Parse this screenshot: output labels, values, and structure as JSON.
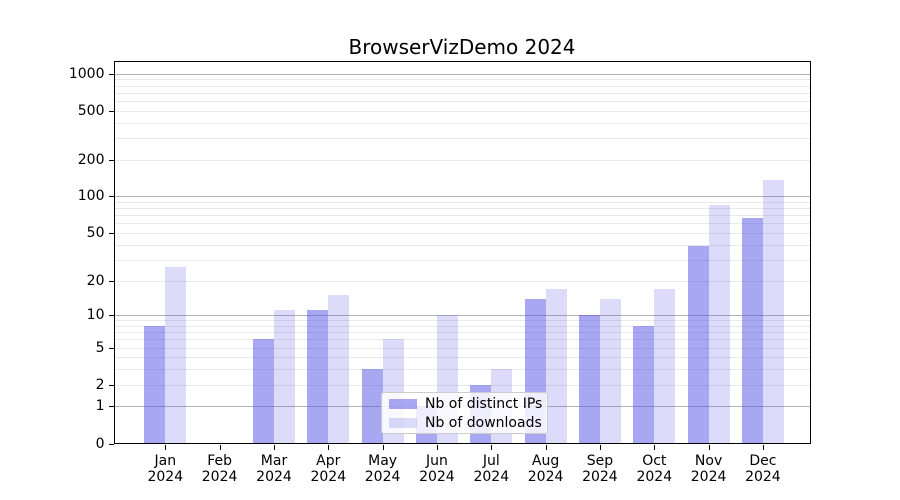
{
  "chart_data": {
    "type": "bar",
    "title": "BrowserVizDemo 2024",
    "categories": [
      "Jan",
      "Feb",
      "Mar",
      "Apr",
      "May",
      "Jun",
      "Jul",
      "Aug",
      "Sep",
      "Oct",
      "Nov",
      "Dec"
    ],
    "year_label": "2024",
    "series": [
      {
        "name": "Nb of distinct IPs",
        "color": "#5252e6",
        "alpha": 0.5,
        "rendered_color": "#a9a9f2",
        "values": [
          8,
          0,
          6,
          11,
          3,
          1,
          2,
          14,
          10,
          8,
          39,
          66
        ]
      },
      {
        "name": "Nb of downloads",
        "color": "#5252e6",
        "alpha": 0.2,
        "rendered_color": "#dcdcfa",
        "values": [
          26,
          0,
          11,
          15,
          6,
          10,
          3,
          17,
          14,
          17,
          85,
          135
        ]
      }
    ],
    "xlabel": "",
    "ylabel": "",
    "yscale": "log10(1+y)",
    "ylim": [
      0,
      1265
    ],
    "yticks": [
      0,
      1,
      2,
      5,
      10,
      20,
      50,
      100,
      200,
      500,
      1000
    ],
    "grid": {
      "enabled": true,
      "major_ticks": [
        1,
        10,
        100,
        1000
      ],
      "major_color": "#b2b2b2",
      "minor_color": "#e9e9e9",
      "drawn_below_bars": true
    },
    "legend": {
      "position": "lower-center-inside",
      "background": "rgba(255,255,255,0.8)",
      "border_color": "#cccccc"
    }
  }
}
